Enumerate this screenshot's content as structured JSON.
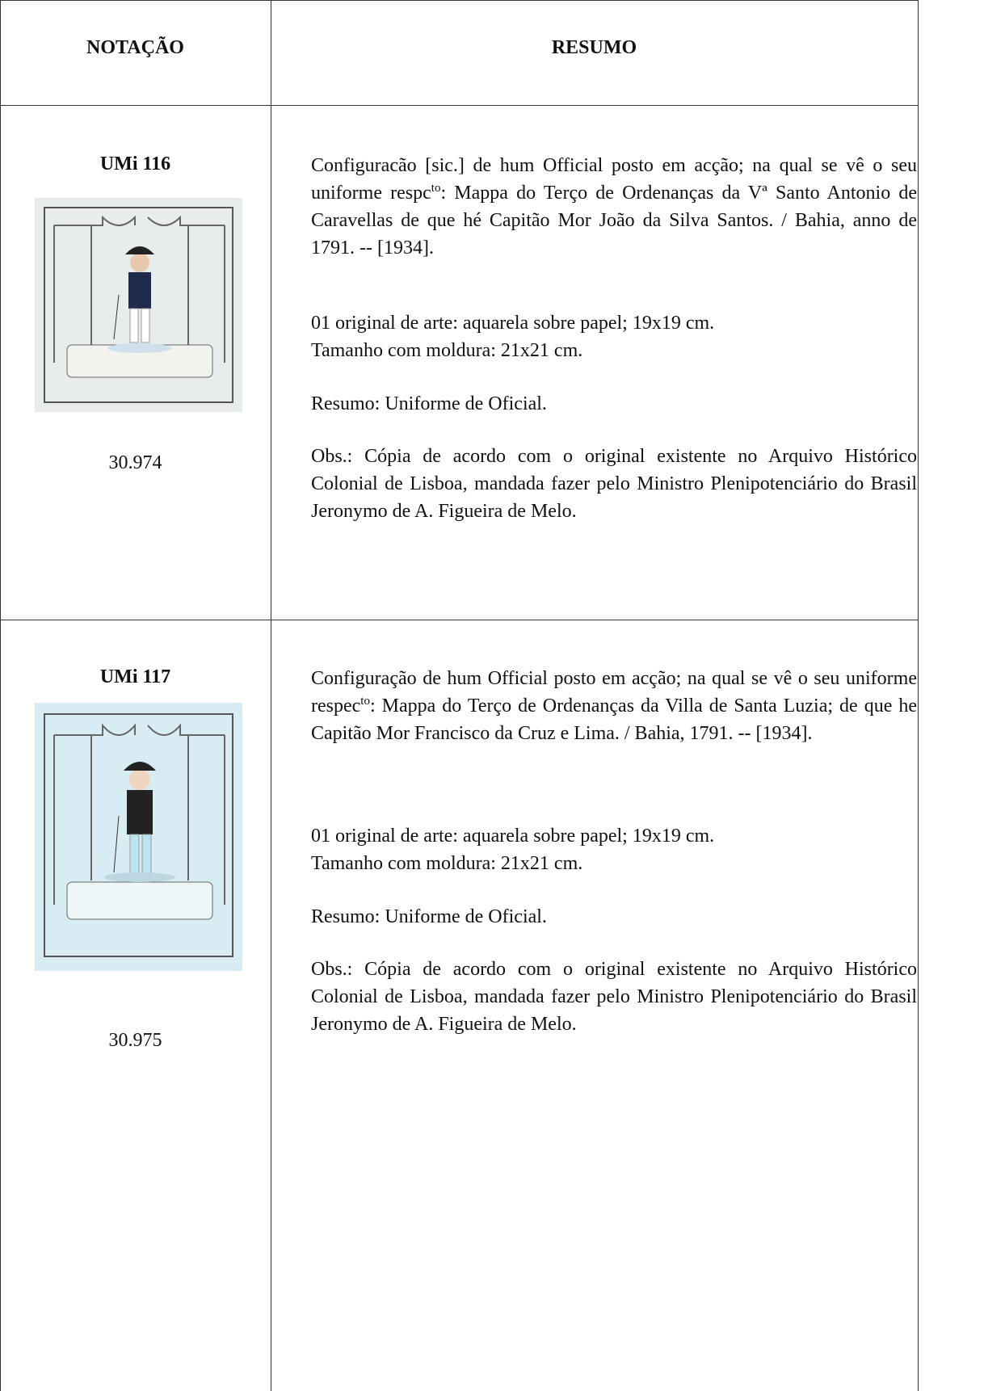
{
  "table": {
    "header": [
      "NOTAÇÃO",
      "RESUMO"
    ],
    "rows": [
      {
        "code": "UMi 116",
        "number": "30.974",
        "title": {
          "before": "Configuracão [sic.] de hum Official posto em acção; na qual se vê o seu uniforme respc",
          "sup": "to",
          "after": ": Mappa do Terço de Ordenanças da Vª Santo Antonio de Caravellas de que hé Capitão Mor João da Silva Santos. / Bahia, anno de 1791. -- [1934]."
        },
        "physical": [
          "01 original de arte: aquarela sobre papel; 19x19 cm.",
          "Tamanho com moldura: 21x21 cm."
        ],
        "resumo": "Resumo: Uniforme de Oficial.",
        "obs": "Obs.: Cópia de acordo com o original existente no Arquivo Histórico Colonial de Lisboa, mandada fazer pelo Ministro Plenipotenciário do Brasil Jeronymo de A. Figueira de Melo."
      },
      {
        "code": "UMi 117",
        "number": "30.975",
        "title": {
          "before": "Configuração de hum Official posto em acção; na qual se vê o seu uniforme respec",
          "sup": "to",
          "after": ": Mappa do Terço de Ordenanças da Villa de Santa Luzia; de que he Capitão Mor Francisco da Cruz e Lima.  / Bahia, 1791. -- [1934]."
        },
        "physical": [
          "01 original de arte: aquarela sobre papel; 19x19 cm.",
          "Tamanho com moldura: 21x21 cm."
        ],
        "resumo": "Resumo: Uniforme de Oficial.",
        "obs": "Obs.: Cópia de acordo com o original existente no Arquivo Histórico Colonial de Lisboa, mandada fazer pelo Ministro Plenipotenciário do Brasil Jeronymo de A. Figueira de Melo."
      }
    ]
  }
}
